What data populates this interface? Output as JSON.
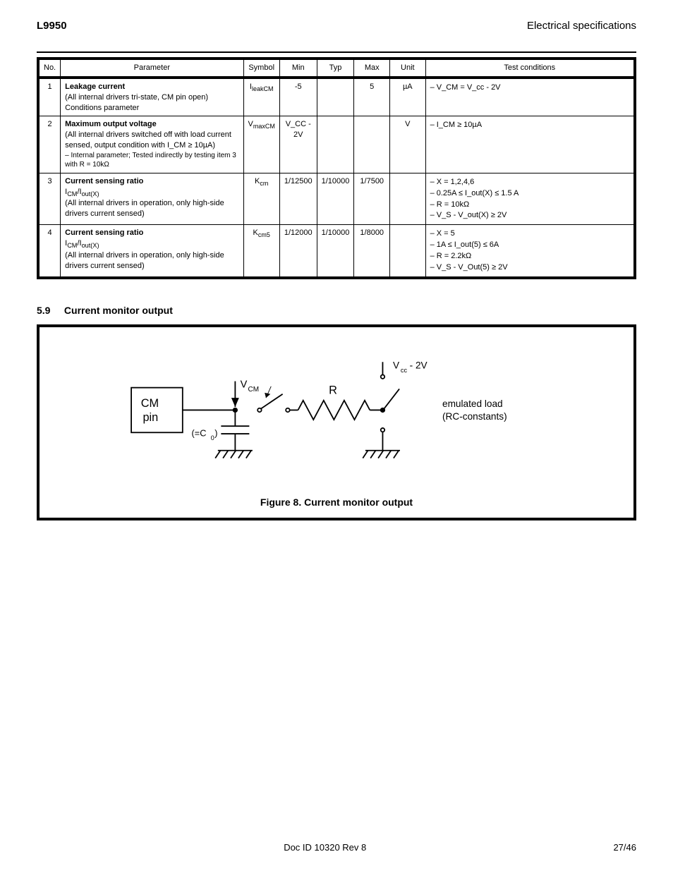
{
  "meta": {
    "doc_code": "L9950",
    "header_right": "Electrical specifications",
    "section_number_label": "5.9",
    "section_title": "Current monitor output",
    "figure_caption": "Figure 8. Current monitor output",
    "footer_left": "Doc ID 10320 Rev 8",
    "footer_center": "27/46",
    "footer_brand": "",
    "footer_sub": ""
  },
  "table": {
    "header": {
      "no": "No.",
      "parameter": "Parameter",
      "symbol": "Symbol",
      "min": "Min",
      "typ": "Typ",
      "max": "Max",
      "unit": "Unit",
      "conditions": "Test conditions"
    },
    "rows": [
      {
        "no": "1",
        "param_title": "Leakage current",
        "param_body": "(All internal drivers tri-state, CM pin open) Conditions parameter",
        "symbol": "I_leakCM",
        "min": "-5",
        "typ": "",
        "max": "5",
        "unit": "µA",
        "cond": [
          "– V_CM = V_cc - 2V"
        ]
      },
      {
        "no": "2",
        "param_title": "Maximum output voltage",
        "param_body": "(All internal drivers switched off with load current sensed, output condition with I_CM ≥ 10µA)",
        "param_tail": "– Internal parameter; Tested indirectly by testing item 3 with R = 10kΩ",
        "symbol": "V_maxCM",
        "min": "V_CC - 2V",
        "typ": "",
        "max": "",
        "unit": "V",
        "cond": [
          "– I_CM ≥ 10µA"
        ]
      },
      {
        "no": "3",
        "param_title": "Current sensing ratio",
        "param_body_html": "I<sub>CM</sub>/I<sub>out(X)</sub><br>(All internal drivers in operation, only high-side drivers current sensed)",
        "symbol": "K_cm",
        "min": "1/12500",
        "typ": "1/10000",
        "max": "1/7500",
        "unit": "",
        "cond": [
          "– X = 1,2,4,6",
          "– 0.25A ≤ I_out(X) ≤ 1.5 A",
          "– R = 10kΩ",
          "– V_S - V_out(X) ≥ 2V"
        ]
      },
      {
        "no": "4",
        "param_title": "Current sensing ratio",
        "param_body_html": "I<sub>CM</sub>/I<sub>out(X)</sub><br>(All internal drivers in operation, only high-side drivers current sensed)",
        "symbol": "K_cm5",
        "min": "1/12000",
        "typ": "1/10000",
        "max": "1/8000",
        "unit": "",
        "cond": [
          "– X = 5",
          "– 1A ≤ I_out(5) ≤ 6A",
          "– R = 2.2kΩ",
          "– V_S - V_Out(5) ≥ 2V"
        ]
      }
    ]
  },
  "diagram": {
    "pin_label": "CM\npin",
    "node_label": "V_CM",
    "cap_label": "(=C_0)",
    "res_label": "R",
    "top_label": "V_cc - 2V",
    "load_label": "emulated load\n(RC-constants)",
    "stroke": "#000000",
    "bg": "#ffffff",
    "font": "Arial"
  }
}
